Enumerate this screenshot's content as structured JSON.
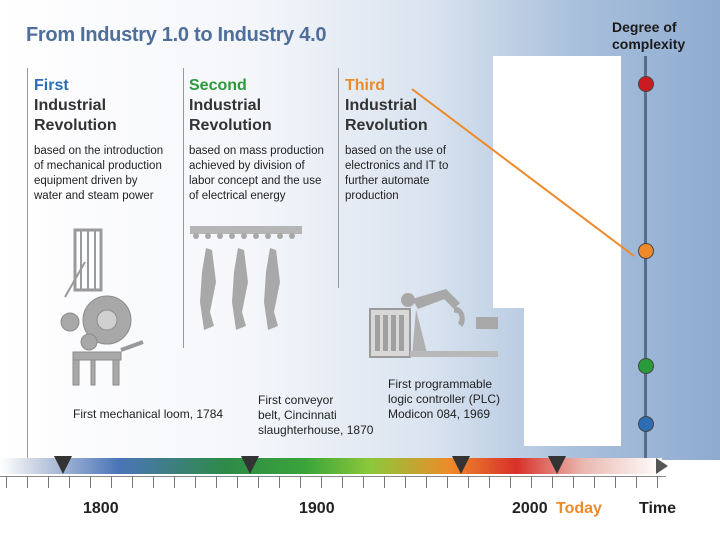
{
  "title": "From Industry 1.0 to Industry 4.0",
  "degree_label": [
    "Degree of",
    "complexity"
  ],
  "revolutions": [
    {
      "ordinal": "First",
      "line2": "Industrial",
      "line3": "Revolution",
      "desc": [
        "based on the introduction",
        "of  mechanical production",
        "equipment driven by",
        "water and steam power"
      ],
      "color": "#2d6db4"
    },
    {
      "ordinal": "Second",
      "line2": "Industrial",
      "line3": "Revolution",
      "desc": [
        "based on mass production",
        "achieved by division of",
        "labor concept and the use",
        "of electrical energy"
      ],
      "color": "#2b9a3a"
    },
    {
      "ordinal": "Third",
      "line2": "Industrial",
      "line3": "Revolution",
      "desc": [
        "based on the use of",
        "electronics and IT to",
        "further automate",
        "production"
      ],
      "color": "#ee8a2a"
    }
  ],
  "captions": {
    "loom": "First mechanical loom, 1784",
    "conveyor": [
      "First conveyor",
      "belt, Cincinnati",
      "slaughterhouse, 1870"
    ],
    "plc": [
      "First programmable",
      "logic controller (PLC)",
      "Modicon 084, 1969"
    ]
  },
  "axis": {
    "y1800": "1800",
    "y1900": "1900",
    "y2000": "2000",
    "today": "Today",
    "time": "Time"
  },
  "complexity_levels": [
    {
      "name": "first",
      "color": "#2d6db4",
      "level": 1
    },
    {
      "name": "second",
      "color": "#2b9a3a",
      "level": 2
    },
    {
      "name": "third",
      "color": "#ee8a2a",
      "level": 3
    },
    {
      "name": "fourth",
      "color": "#cc1a22",
      "level": 4
    }
  ],
  "colors": {
    "title": "#4f6f9a",
    "today": "#ee8a2a",
    "connector": "#ee8a2a"
  }
}
